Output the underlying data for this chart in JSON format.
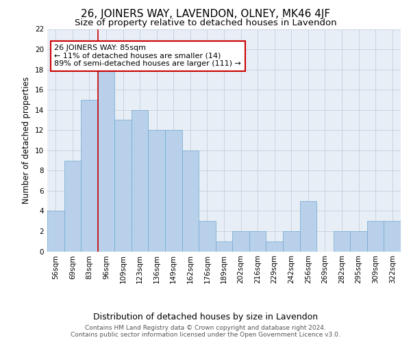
{
  "title": "26, JOINERS WAY, LAVENDON, OLNEY, MK46 4JF",
  "subtitle": "Size of property relative to detached houses in Lavendon",
  "xlabel": "Distribution of detached houses by size in Lavendon",
  "ylabel": "Number of detached properties",
  "categories": [
    "56sqm",
    "69sqm",
    "83sqm",
    "96sqm",
    "109sqm",
    "123sqm",
    "136sqm",
    "149sqm",
    "162sqm",
    "176sqm",
    "189sqm",
    "202sqm",
    "216sqm",
    "229sqm",
    "242sqm",
    "256sqm",
    "269sqm",
    "282sqm",
    "295sqm",
    "309sqm",
    "322sqm"
  ],
  "values": [
    4,
    9,
    15,
    18,
    13,
    14,
    12,
    12,
    10,
    3,
    1,
    2,
    2,
    1,
    2,
    5,
    0,
    2,
    2,
    3,
    3
  ],
  "bar_color": "#b8d0ea",
  "bar_edge_color": "#6fa8d0",
  "grid_color": "#c8d4e0",
  "background_color": "#e8eef6",
  "red_line_x": 2.5,
  "annotation_text": "26 JOINERS WAY: 85sqm\n← 11% of detached houses are smaller (14)\n89% of semi-detached houses are larger (111) →",
  "annotation_box_color": "#ffffff",
  "annotation_border_color": "#cc0000",
  "ylim": [
    0,
    22
  ],
  "yticks": [
    0,
    2,
    4,
    6,
    8,
    10,
    12,
    14,
    16,
    18,
    20,
    22
  ],
  "footer": "Contains HM Land Registry data © Crown copyright and database right 2024.\nContains public sector information licensed under the Open Government Licence v3.0.",
  "title_fontsize": 11,
  "subtitle_fontsize": 9.5,
  "xlabel_fontsize": 9,
  "ylabel_fontsize": 8.5,
  "tick_fontsize": 7.5,
  "annotation_fontsize": 8,
  "footer_fontsize": 6.5
}
